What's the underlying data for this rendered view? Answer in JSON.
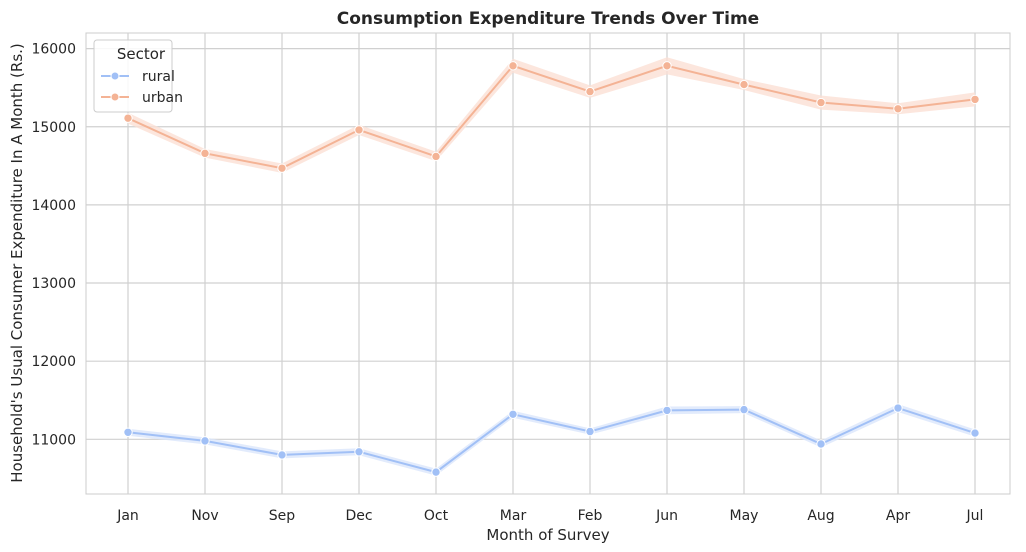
{
  "chart_data": {
    "type": "line",
    "title": "Consumption Expenditure Trends Over Time",
    "xlabel": "Month of Survey",
    "ylabel": "Household's Usual Consumer Expenditure In A Month (Rs.)",
    "categories": [
      "Jan",
      "Nov",
      "Sep",
      "Dec",
      "Oct",
      "Mar",
      "Feb",
      "Jun",
      "May",
      "Aug",
      "Apr",
      "Jul"
    ],
    "ylim": [
      10300,
      16200
    ],
    "yticks": [
      11000,
      12000,
      13000,
      14000,
      15000,
      16000
    ],
    "grid": true,
    "legend": {
      "title": "Sector",
      "placement": "top-left"
    },
    "series": [
      {
        "name": "rural",
        "color": "#a1c0f6",
        "band_color": "#dbe6fb",
        "values": [
          11090,
          10980,
          10800,
          10840,
          10580,
          11320,
          11100,
          11370,
          11380,
          10940,
          11400,
          11080
        ],
        "ci_halfwidth": [
          45,
          45,
          45,
          45,
          45,
          45,
          40,
          50,
          45,
          45,
          50,
          45
        ]
      },
      {
        "name": "urban",
        "color": "#f4b395",
        "band_color": "#fbe0d5",
        "values": [
          15110,
          14660,
          14470,
          14960,
          14620,
          15780,
          15450,
          15780,
          15540,
          15310,
          15230,
          15350
        ],
        "ci_halfwidth": [
          70,
          55,
          60,
          65,
          60,
          90,
          80,
          110,
          70,
          90,
          70,
          90
        ]
      }
    ]
  }
}
